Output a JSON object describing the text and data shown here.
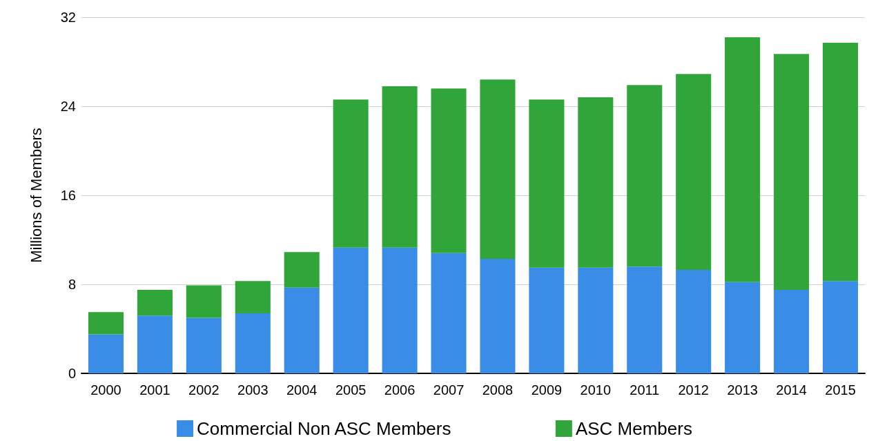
{
  "chart_data": {
    "type": "bar",
    "stacked": true,
    "ylabel": "Millions of Members",
    "categories": [
      "2000",
      "2001",
      "2002",
      "2003",
      "2004",
      "2005",
      "2006",
      "2007",
      "2008",
      "2009",
      "2010",
      "2011",
      "2012",
      "2013",
      "2014",
      "2015"
    ],
    "series": [
      {
        "name": "Commercial Non ASC Members",
        "color": "#3a8de6",
        "values": [
          3.5,
          5.2,
          5.0,
          5.4,
          7.7,
          11.3,
          11.3,
          10.8,
          10.3,
          9.5,
          9.5,
          9.6,
          9.3,
          8.2,
          7.5,
          8.3
        ]
      },
      {
        "name": "ASC Members",
        "color": "#2fa53a",
        "values": [
          2.0,
          2.3,
          2.9,
          2.9,
          3.2,
          13.3,
          14.5,
          14.8,
          16.1,
          15.1,
          15.3,
          16.3,
          17.6,
          22.0,
          21.2,
          21.4
        ]
      }
    ],
    "ylim": [
      0,
      32
    ],
    "yticks": [
      0,
      8,
      16,
      24,
      32
    ],
    "grid": "y",
    "legend": "bottom"
  }
}
